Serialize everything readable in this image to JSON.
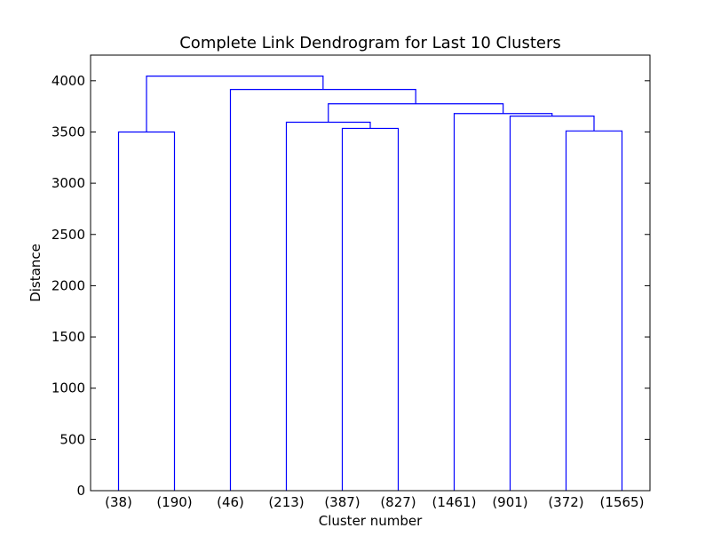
{
  "chart_data": {
    "type": "dendrogram",
    "title": "Complete Link Dendrogram for Last 10 Clusters",
    "xlabel": "Cluster number",
    "ylabel": "Distance",
    "ylim": [
      0,
      4250
    ],
    "yticks": [
      0,
      500,
      1000,
      1500,
      2000,
      2500,
      3000,
      3500,
      4000
    ],
    "leaves": [
      "(38)",
      "(190)",
      "(46)",
      "(213)",
      "(387)",
      "(827)",
      "(1461)",
      "(901)",
      "(372)",
      "(1565)"
    ],
    "merges": [
      {
        "left": "leaf:0",
        "right": "leaf:1",
        "distance": 3500
      },
      {
        "left": "leaf:4",
        "right": "leaf:5",
        "distance": 3535
      },
      {
        "left": "leaf:3",
        "right": "merge:1",
        "distance": 3595
      },
      {
        "left": "leaf:8",
        "right": "leaf:9",
        "distance": 3510
      },
      {
        "left": "leaf:7",
        "right": "merge:3",
        "distance": 3655
      },
      {
        "left": "leaf:6",
        "right": "merge:4",
        "distance": 3680
      },
      {
        "left": "merge:2",
        "right": "merge:5",
        "distance": 3775
      },
      {
        "left": "leaf:2",
        "right": "merge:6",
        "distance": 3915
      },
      {
        "left": "merge:0",
        "right": "merge:7",
        "distance": 4045
      }
    ],
    "line_color": "#0000ff",
    "grid": false
  }
}
